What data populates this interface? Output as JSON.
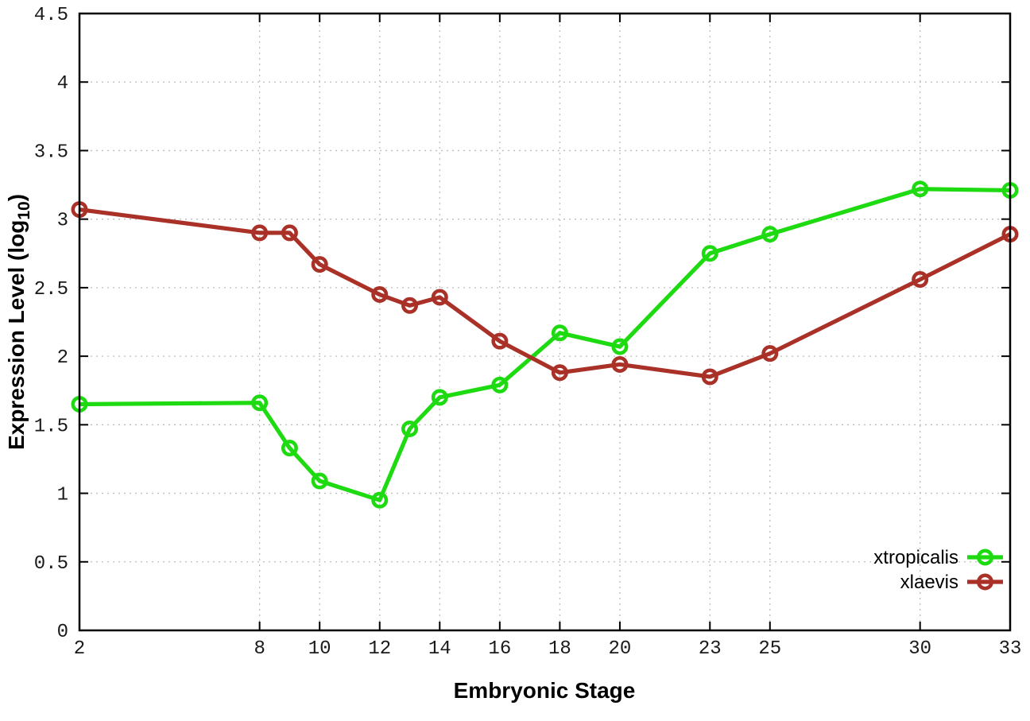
{
  "chart_data": {
    "type": "line",
    "title": "",
    "xlabel": "Embryonic Stage",
    "ylabel": "Expression Level (log10)",
    "x": [
      2,
      8,
      9,
      10,
      12,
      13,
      14,
      16,
      18,
      20,
      23,
      25,
      30,
      33
    ],
    "series": [
      {
        "name": "xtropicalis",
        "color": "#1dda11",
        "marker": "open-circle",
        "values": [
          1.65,
          1.66,
          1.33,
          1.09,
          0.95,
          1.47,
          1.7,
          1.79,
          2.17,
          2.07,
          2.75,
          2.89,
          3.22,
          3.21
        ]
      },
      {
        "name": "xlaevis",
        "color": "#a93127",
        "marker": "open-circle",
        "values": [
          3.07,
          2.9,
          2.9,
          2.67,
          2.45,
          2.37,
          2.43,
          2.11,
          1.88,
          1.94,
          1.85,
          2.02,
          2.56,
          2.89
        ]
      }
    ],
    "x_ticks": [
      2,
      8,
      10,
      12,
      14,
      16,
      18,
      20,
      23,
      25,
      30,
      33
    ],
    "y_ticks": [
      0,
      0.5,
      1,
      1.5,
      2,
      2.5,
      3,
      3.5,
      4,
      4.5
    ],
    "xlim": [
      2,
      33
    ],
    "ylim": [
      0,
      4.5
    ],
    "grid": true,
    "grid_style": "dotted",
    "legend_position": "bottom-right",
    "draw_order": [
      "xtropicalis",
      "xlaevis"
    ]
  },
  "labels": {
    "ylabel_prefix": "Expression Level (log",
    "ylabel_sub": "10",
    "ylabel_suffix": ")"
  },
  "colors": {
    "background": "#ffffff",
    "border": "#000000",
    "grid": "#bdbdbd",
    "tick_text": "#1a1a1a",
    "xtropicalis": "#1dda11",
    "xlaevis": "#a93127"
  }
}
